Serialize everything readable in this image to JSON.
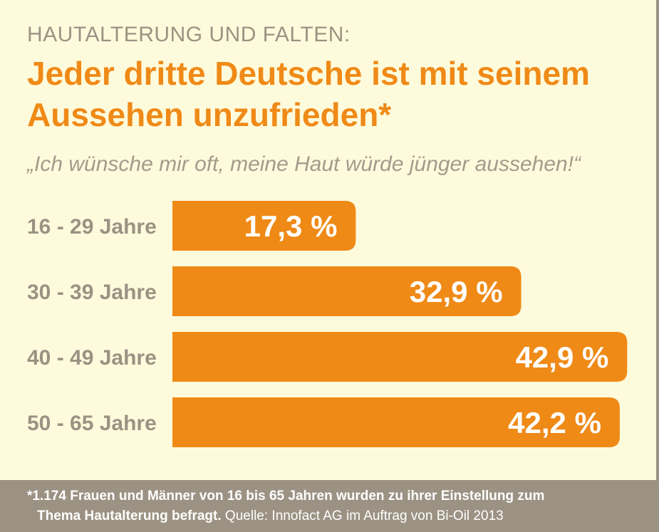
{
  "header": {
    "kicker": "HAUTALTERUNG UND FALTEN:",
    "headline_line1": "Jeder dritte Deutsche ist mit seinem",
    "headline_line2": "Aussehen unzufrieden*",
    "quote": "„Ich wünsche mir oft, meine Haut würde jünger aussehen!“"
  },
  "chart_data": {
    "type": "bar",
    "orientation": "horizontal",
    "categories": [
      "16 - 29 Jahre",
      "30 - 39 Jahre",
      "40 - 49 Jahre",
      "50 - 65 Jahre"
    ],
    "values": [
      17.3,
      32.9,
      42.9,
      42.2
    ],
    "value_labels": [
      "17,3 %",
      "32,9 %",
      "42,9 %",
      "42,2 %"
    ],
    "unit": "%",
    "bar_color": "#ef8a17",
    "label_color": "#9b9283"
  },
  "footer": {
    "line1": "*1.174 Frauen und Männer von 16 bis 65 Jahren wurden zu ihrer Einstellung zum",
    "line2_bold": "Thema Hautalterung befragt.",
    "line2_source": " Quelle: Innofact AG im Auftrag von Bi-Oil 2013"
  }
}
